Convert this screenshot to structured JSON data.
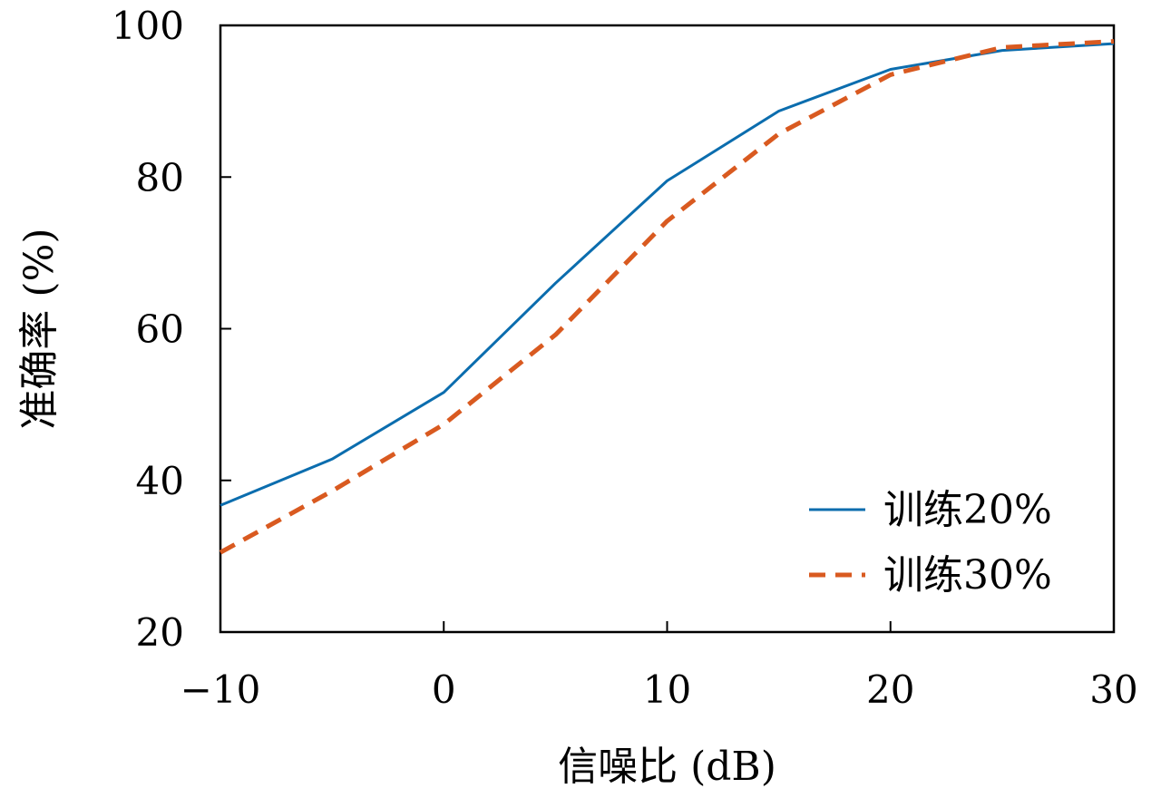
{
  "chart_data": {
    "type": "line",
    "xlabel": "信噪比 (dB)",
    "ylabel": "准确率 (%)",
    "xlim": [
      -10,
      30
    ],
    "ylim": [
      20,
      100
    ],
    "xticks": [
      -10,
      0,
      10,
      20,
      30
    ],
    "yticks": [
      20,
      40,
      60,
      80,
      100
    ],
    "xtick_labels": [
      "−10",
      "0",
      "10",
      "20",
      "30"
    ],
    "ytick_labels": [
      "20",
      "40",
      "60",
      "80",
      "100"
    ],
    "grid": false,
    "legend_position": "lower-right",
    "x": [
      -10,
      -5,
      0,
      5,
      10,
      15,
      20,
      25,
      30
    ],
    "series": [
      {
        "name": "训练20%",
        "values": [
          36.7,
          42.8,
          51.6,
          66.0,
          79.5,
          88.7,
          94.2,
          96.7,
          97.6
        ],
        "color": "#0b6dae",
        "style": "solid"
      },
      {
        "name": "训练30%",
        "values": [
          30.5,
          38.6,
          47.4,
          59.2,
          74.2,
          85.7,
          93.5,
          97.1,
          97.9
        ],
        "color": "#d95a20",
        "style": "dashed"
      }
    ]
  }
}
